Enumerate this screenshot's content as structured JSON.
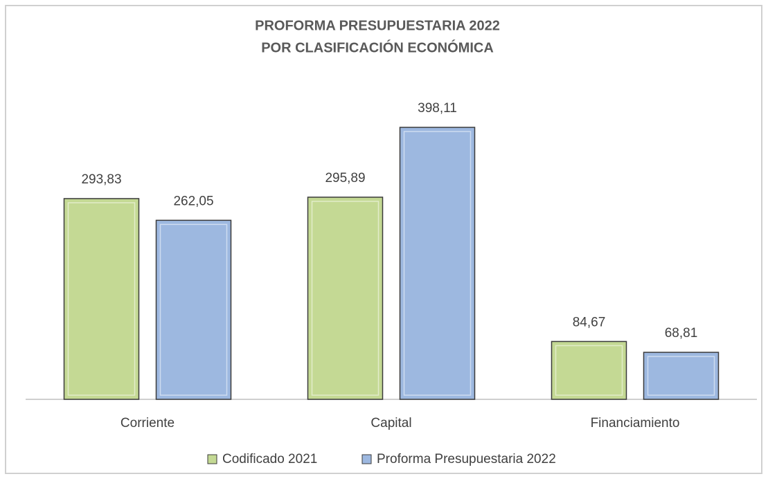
{
  "chart_data": {
    "type": "bar",
    "title": "PROFORMA PRESUPUESTARIA 2022",
    "subtitle": "POR CLASIFICACIÓN ECONÓMICA",
    "categories": [
      "Corriente",
      "Capital",
      "Financiamiento"
    ],
    "series": [
      {
        "name": "Codificado 2021",
        "color": "#c4d994",
        "values": [
          293.83,
          295.89,
          84.67
        ],
        "value_labels": [
          "293,83",
          "295,89",
          "84,67"
        ]
      },
      {
        "name": "Proforma Presupuestaria 2022",
        "color": "#9db8e0",
        "values": [
          262.05,
          398.11,
          68.81
        ],
        "value_labels": [
          "262,05",
          "398,11",
          "68,81"
        ]
      }
    ],
    "legend": "bottom"
  }
}
